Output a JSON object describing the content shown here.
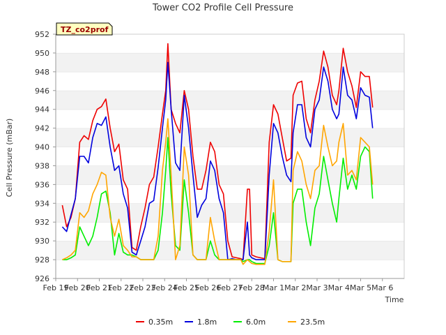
{
  "chart_data": {
    "type": "line",
    "title": "Tower CO2 Profile Cell Pressure",
    "xlabel": "Time",
    "ylabel": "Cell Pressure (mBar)",
    "tag": "TZ_co2prof",
    "ylim": [
      926,
      952
    ],
    "y_ticks": [
      926,
      928,
      930,
      932,
      934,
      936,
      938,
      940,
      942,
      944,
      946,
      948,
      950,
      952
    ],
    "xlim": [
      0,
      16
    ],
    "x_ticks": [
      {
        "x": 0,
        "label": "Feb 19"
      },
      {
        "x": 1,
        "label": "Feb 20"
      },
      {
        "x": 2,
        "label": "Feb 21"
      },
      {
        "x": 3,
        "label": "Feb 22"
      },
      {
        "x": 4,
        "label": "Feb 23"
      },
      {
        "x": 5,
        "label": "Feb 24"
      },
      {
        "x": 6,
        "label": "Feb 25"
      },
      {
        "x": 7,
        "label": "Feb 26"
      },
      {
        "x": 8,
        "label": "Feb 27"
      },
      {
        "x": 9,
        "label": "Feb 28"
      },
      {
        "x": 10,
        "label": "Mar 1"
      },
      {
        "x": 11,
        "label": "Mar 2"
      },
      {
        "x": 12,
        "label": "Mar 3"
      },
      {
        "x": 13,
        "label": "Mar 4"
      },
      {
        "x": 14,
        "label": "Mar 5"
      },
      {
        "x": 15,
        "label": "Mar 6"
      }
    ],
    "grid": "horizontal bands",
    "legend": "bottom",
    "series": [
      {
        "name": "0.35m",
        "color": "#ee0000",
        "points": [
          [
            0.3,
            933.8
          ],
          [
            0.5,
            931.5
          ],
          [
            0.7,
            932.5
          ],
          [
            0.9,
            934.5
          ],
          [
            1.1,
            940.5
          ],
          [
            1.3,
            941.2
          ],
          [
            1.5,
            940.8
          ],
          [
            1.7,
            942.8
          ],
          [
            1.9,
            944
          ],
          [
            2.1,
            944.3
          ],
          [
            2.3,
            945.1
          ],
          [
            2.5,
            942
          ],
          [
            2.7,
            939.5
          ],
          [
            2.9,
            940.3
          ],
          [
            3.1,
            936.5
          ],
          [
            3.3,
            935.5
          ],
          [
            3.5,
            929.3
          ],
          [
            3.7,
            929
          ],
          [
            3.9,
            931.5
          ],
          [
            4.1,
            933.5
          ],
          [
            4.3,
            936
          ],
          [
            4.5,
            936.8
          ],
          [
            4.7,
            940
          ],
          [
            4.9,
            943.5
          ],
          [
            5.05,
            946
          ],
          [
            5.15,
            951
          ],
          [
            5.3,
            944
          ],
          [
            5.5,
            942.5
          ],
          [
            5.7,
            941.5
          ],
          [
            5.9,
            946
          ],
          [
            6.1,
            944
          ],
          [
            6.3,
            939
          ],
          [
            6.5,
            935.5
          ],
          [
            6.7,
            935.5
          ],
          [
            6.9,
            937.5
          ],
          [
            7.1,
            940.5
          ],
          [
            7.3,
            939.5
          ],
          [
            7.5,
            936
          ],
          [
            7.7,
            935
          ],
          [
            7.9,
            930
          ],
          [
            8.1,
            928.3
          ],
          [
            8.3,
            928.2
          ],
          [
            8.5,
            928.1
          ],
          [
            8.6,
            928
          ],
          [
            8.8,
            935.5
          ],
          [
            8.9,
            935.5
          ],
          [
            9.0,
            928.5
          ],
          [
            9.2,
            928.3
          ],
          [
            9.4,
            928.2
          ],
          [
            9.6,
            928.1
          ],
          [
            9.8,
            940.5
          ],
          [
            10.0,
            944.5
          ],
          [
            10.2,
            943.5
          ],
          [
            10.4,
            941
          ],
          [
            10.6,
            938.5
          ],
          [
            10.8,
            938.8
          ],
          [
            10.9,
            945.5
          ],
          [
            11.1,
            946.8
          ],
          [
            11.3,
            947
          ],
          [
            11.5,
            943
          ],
          [
            11.7,
            941.5
          ],
          [
            11.9,
            945
          ],
          [
            12.1,
            947
          ],
          [
            12.3,
            950.2
          ],
          [
            12.5,
            948.5
          ],
          [
            12.7,
            945.5
          ],
          [
            12.9,
            944.5
          ],
          [
            13.0,
            946
          ],
          [
            13.2,
            950.5
          ],
          [
            13.4,
            948
          ],
          [
            13.6,
            946.5
          ],
          [
            13.8,
            944.2
          ],
          [
            14.0,
            948
          ],
          [
            14.2,
            947.5
          ],
          [
            14.4,
            947.5
          ],
          [
            14.55,
            944.2
          ]
        ]
      },
      {
        "name": "1.8m",
        "color": "#0000dd",
        "points": [
          [
            0.3,
            931.5
          ],
          [
            0.5,
            931
          ],
          [
            0.7,
            932.8
          ],
          [
            0.9,
            934.5
          ],
          [
            1.1,
            939
          ],
          [
            1.3,
            939
          ],
          [
            1.5,
            938.3
          ],
          [
            1.7,
            941
          ],
          [
            1.9,
            942.5
          ],
          [
            2.1,
            942.3
          ],
          [
            2.3,
            943.2
          ],
          [
            2.5,
            940
          ],
          [
            2.7,
            937.5
          ],
          [
            2.9,
            938
          ],
          [
            3.1,
            935
          ],
          [
            3.3,
            933.5
          ],
          [
            3.5,
            928.8
          ],
          [
            3.7,
            928.5
          ],
          [
            3.9,
            930
          ],
          [
            4.1,
            931.5
          ],
          [
            4.3,
            934
          ],
          [
            4.5,
            934.3
          ],
          [
            4.7,
            937.8
          ],
          [
            4.9,
            942
          ],
          [
            5.05,
            945
          ],
          [
            5.15,
            949
          ],
          [
            5.3,
            944
          ],
          [
            5.5,
            938.3
          ],
          [
            5.7,
            937.5
          ],
          [
            5.9,
            945.5
          ],
          [
            6.1,
            942
          ],
          [
            6.3,
            937
          ],
          [
            6.5,
            932.5
          ],
          [
            6.7,
            933.8
          ],
          [
            6.9,
            934.5
          ],
          [
            7.1,
            938.5
          ],
          [
            7.3,
            937.5
          ],
          [
            7.5,
            934.5
          ],
          [
            7.7,
            933
          ],
          [
            7.9,
            928
          ],
          [
            8.1,
            928.1
          ],
          [
            8.3,
            928
          ],
          [
            8.5,
            928
          ],
          [
            8.6,
            928
          ],
          [
            8.8,
            932
          ],
          [
            8.9,
            928.5
          ],
          [
            9.0,
            928.2
          ],
          [
            9.2,
            928
          ],
          [
            9.4,
            928
          ],
          [
            9.6,
            928
          ],
          [
            9.8,
            937
          ],
          [
            10.0,
            942.5
          ],
          [
            10.2,
            941.5
          ],
          [
            10.4,
            939
          ],
          [
            10.6,
            937
          ],
          [
            10.8,
            936.3
          ],
          [
            10.9,
            941.5
          ],
          [
            11.1,
            944.5
          ],
          [
            11.3,
            944.5
          ],
          [
            11.5,
            941
          ],
          [
            11.7,
            940
          ],
          [
            11.9,
            944
          ],
          [
            12.1,
            945
          ],
          [
            12.3,
            948.5
          ],
          [
            12.5,
            947
          ],
          [
            12.7,
            944
          ],
          [
            12.9,
            943
          ],
          [
            13.0,
            943.5
          ],
          [
            13.2,
            948.5
          ],
          [
            13.4,
            945.5
          ],
          [
            13.6,
            945
          ],
          [
            13.8,
            943
          ],
          [
            14.0,
            946.3
          ],
          [
            14.2,
            945.5
          ],
          [
            14.4,
            945.3
          ],
          [
            14.55,
            942
          ]
        ]
      },
      {
        "name": "6.0m",
        "color": "#00ee00",
        "points": [
          [
            0.3,
            928
          ],
          [
            0.5,
            928
          ],
          [
            0.7,
            928.2
          ],
          [
            0.9,
            928.5
          ],
          [
            1.1,
            931.5
          ],
          [
            1.3,
            930.5
          ],
          [
            1.5,
            929.5
          ],
          [
            1.7,
            930.5
          ],
          [
            1.9,
            932.5
          ],
          [
            2.1,
            935
          ],
          [
            2.3,
            935.3
          ],
          [
            2.5,
            933
          ],
          [
            2.7,
            928.5
          ],
          [
            2.9,
            930.8
          ],
          [
            3.1,
            928.8
          ],
          [
            3.3,
            928.5
          ],
          [
            3.5,
            928.5
          ],
          [
            3.7,
            928.3
          ],
          [
            3.9,
            928
          ],
          [
            4.1,
            928
          ],
          [
            4.3,
            928
          ],
          [
            4.5,
            928
          ],
          [
            4.7,
            929
          ],
          [
            4.9,
            933
          ],
          [
            5.05,
            937.5
          ],
          [
            5.15,
            941
          ],
          [
            5.3,
            935
          ],
          [
            5.5,
            929.5
          ],
          [
            5.7,
            929
          ],
          [
            5.9,
            936.5
          ],
          [
            6.1,
            933
          ],
          [
            6.3,
            928.5
          ],
          [
            6.5,
            928
          ],
          [
            6.7,
            928
          ],
          [
            6.9,
            928
          ],
          [
            7.1,
            930
          ],
          [
            7.3,
            928.5
          ],
          [
            7.5,
            928
          ],
          [
            7.7,
            928
          ],
          [
            7.9,
            928
          ],
          [
            8.1,
            928
          ],
          [
            8.3,
            928
          ],
          [
            8.5,
            928
          ],
          [
            8.6,
            927.8
          ],
          [
            8.8,
            928
          ],
          [
            8.9,
            928
          ],
          [
            9.0,
            927.8
          ],
          [
            9.2,
            927.6
          ],
          [
            9.4,
            927.6
          ],
          [
            9.6,
            927.6
          ],
          [
            9.8,
            929.5
          ],
          [
            10.0,
            933
          ],
          [
            10.2,
            928
          ],
          [
            10.4,
            927.8
          ],
          [
            10.6,
            927.8
          ],
          [
            10.8,
            927.8
          ],
          [
            10.9,
            934
          ],
          [
            11.1,
            935.5
          ],
          [
            11.3,
            935.5
          ],
          [
            11.5,
            932
          ],
          [
            11.7,
            929.5
          ],
          [
            11.9,
            933.5
          ],
          [
            12.1,
            935
          ],
          [
            12.3,
            939
          ],
          [
            12.5,
            936.5
          ],
          [
            12.7,
            934
          ],
          [
            12.9,
            932
          ],
          [
            13.0,
            934.5
          ],
          [
            13.2,
            938.8
          ],
          [
            13.4,
            935.5
          ],
          [
            13.6,
            937
          ],
          [
            13.8,
            935.5
          ],
          [
            14.0,
            939
          ],
          [
            14.2,
            940
          ],
          [
            14.4,
            939.5
          ],
          [
            14.55,
            934.5
          ]
        ]
      },
      {
        "name": "23.5m",
        "color": "#ffa500",
        "points": [
          [
            0.3,
            928
          ],
          [
            0.5,
            928.2
          ],
          [
            0.7,
            928.5
          ],
          [
            0.9,
            929
          ],
          [
            1.1,
            933
          ],
          [
            1.3,
            932.5
          ],
          [
            1.5,
            933.2
          ],
          [
            1.7,
            935
          ],
          [
            1.9,
            936
          ],
          [
            2.1,
            937.3
          ],
          [
            2.3,
            937
          ],
          [
            2.5,
            932.5
          ],
          [
            2.7,
            930.5
          ],
          [
            2.9,
            932.3
          ],
          [
            3.1,
            929.5
          ],
          [
            3.3,
            929
          ],
          [
            3.5,
            928.3
          ],
          [
            3.7,
            928.3
          ],
          [
            3.9,
            928
          ],
          [
            4.1,
            928
          ],
          [
            4.3,
            928
          ],
          [
            4.5,
            928
          ],
          [
            4.7,
            930.5
          ],
          [
            4.9,
            937.5
          ],
          [
            5.05,
            940.5
          ],
          [
            5.15,
            943
          ],
          [
            5.3,
            937
          ],
          [
            5.5,
            928
          ],
          [
            5.7,
            929.5
          ],
          [
            5.9,
            940
          ],
          [
            6.1,
            937
          ],
          [
            6.3,
            928.5
          ],
          [
            6.5,
            928
          ],
          [
            6.7,
            928
          ],
          [
            6.9,
            928
          ],
          [
            7.1,
            932.5
          ],
          [
            7.3,
            930
          ],
          [
            7.5,
            928
          ],
          [
            7.7,
            928
          ],
          [
            7.9,
            928
          ],
          [
            8.1,
            928
          ],
          [
            8.3,
            928
          ],
          [
            8.5,
            928
          ],
          [
            8.6,
            927.5
          ],
          [
            8.8,
            928
          ],
          [
            8.9,
            927.8
          ],
          [
            9.0,
            927.6
          ],
          [
            9.2,
            927.5
          ],
          [
            9.4,
            927.5
          ],
          [
            9.6,
            927.5
          ],
          [
            9.8,
            931
          ],
          [
            10.0,
            936.5
          ],
          [
            10.2,
            928
          ],
          [
            10.4,
            927.8
          ],
          [
            10.6,
            927.8
          ],
          [
            10.8,
            927.8
          ],
          [
            10.9,
            937.5
          ],
          [
            11.1,
            939.5
          ],
          [
            11.3,
            938.5
          ],
          [
            11.5,
            936
          ],
          [
            11.7,
            934.5
          ],
          [
            11.9,
            937.5
          ],
          [
            12.1,
            938
          ],
          [
            12.3,
            942.3
          ],
          [
            12.5,
            940
          ],
          [
            12.7,
            938
          ],
          [
            12.9,
            938.5
          ],
          [
            13.0,
            940.5
          ],
          [
            13.2,
            942.5
          ],
          [
            13.4,
            937
          ],
          [
            13.6,
            937.5
          ],
          [
            13.8,
            936.5
          ],
          [
            14.0,
            941
          ],
          [
            14.2,
            940.5
          ],
          [
            14.4,
            940
          ],
          [
            14.55,
            936
          ]
        ]
      }
    ]
  }
}
